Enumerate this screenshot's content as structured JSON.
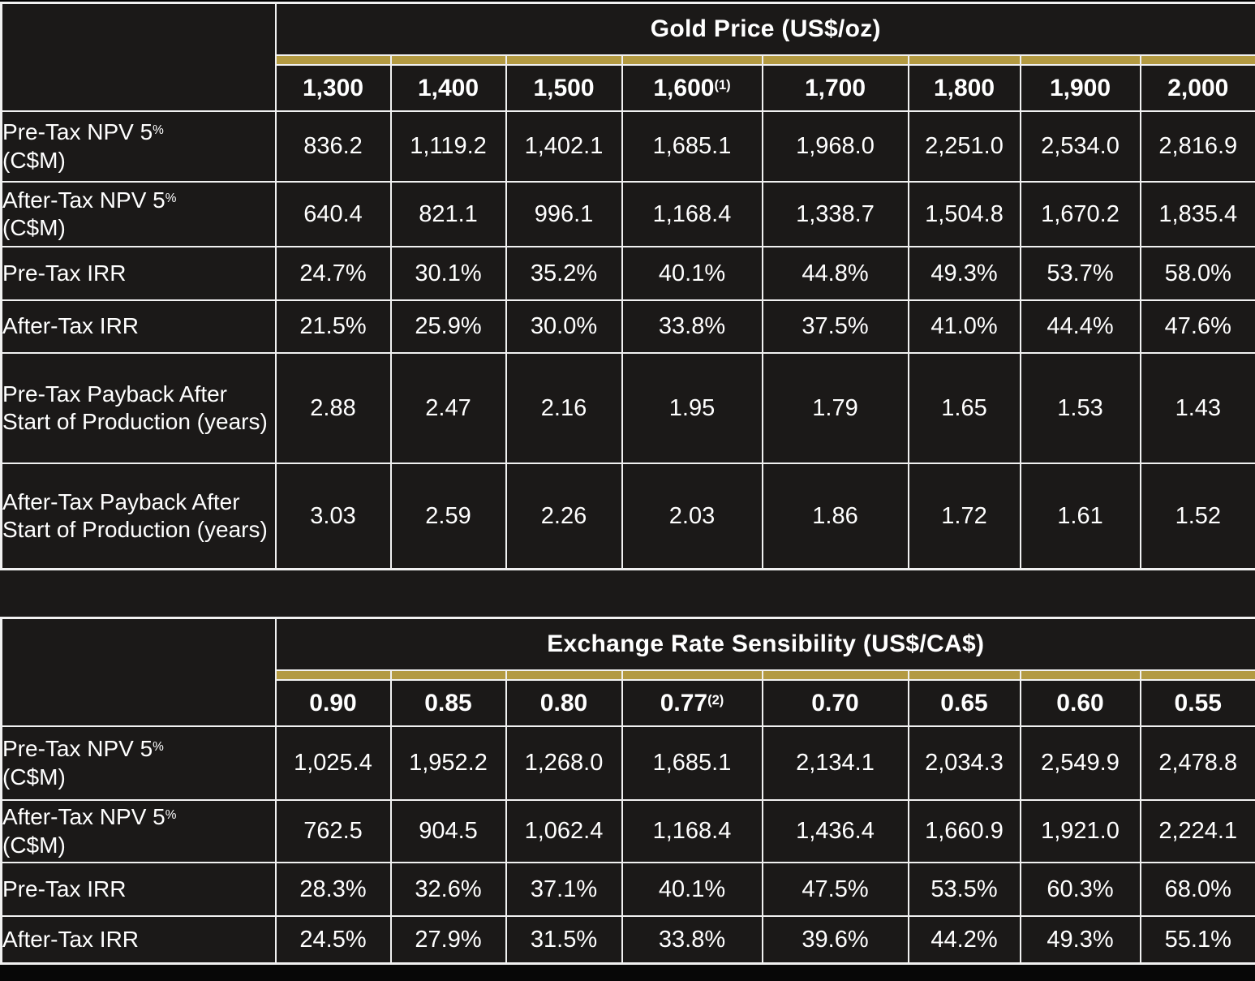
{
  "colors": {
    "background": "#000000",
    "cell": "#1B1918",
    "border": "#F1F1F1",
    "gold": "#B39A42",
    "text": "#FFFFFF",
    "bottom_bar": "#070707"
  },
  "gold_price_table": {
    "title": "Gold Price (US$/oz)",
    "columns": [
      {
        "label": "1,300",
        "sup": ""
      },
      {
        "label": "1,400",
        "sup": ""
      },
      {
        "label": "1,500",
        "sup": ""
      },
      {
        "label": "1,600",
        "sup": "(1)"
      },
      {
        "label": "1,700",
        "sup": ""
      },
      {
        "label": "1,800",
        "sup": ""
      },
      {
        "label": "1,900",
        "sup": ""
      },
      {
        "label": "2,000",
        "sup": ""
      }
    ],
    "rows": [
      {
        "label": "Pre-Tax NPV 5",
        "label_sup": "%",
        "label_line2": "(C$M)",
        "values": [
          "836.2",
          "1,119.2",
          "1,402.1",
          "1,685.1",
          "1,968.0",
          "2,251.0",
          "2,534.0",
          "2,816.9"
        ]
      },
      {
        "label": "After-Tax NPV 5",
        "label_sup": "%",
        "label_line2": "(C$M)",
        "values": [
          "640.4",
          "821.1",
          "996.1",
          "1,168.4",
          "1,338.7",
          "1,504.8",
          "1,670.2",
          "1,835.4"
        ]
      },
      {
        "label": "Pre-Tax IRR",
        "label_sup": "",
        "label_line2": "",
        "values": [
          "24.7%",
          "30.1%",
          "35.2%",
          "40.1%",
          "44.8%",
          "49.3%",
          "53.7%",
          "58.0%"
        ]
      },
      {
        "label": "After-Tax IRR",
        "label_sup": "",
        "label_line2": "",
        "values": [
          "21.5%",
          "25.9%",
          "30.0%",
          "33.8%",
          "37.5%",
          "41.0%",
          "44.4%",
          "47.6%"
        ]
      },
      {
        "label": "Pre-Tax Payback After Start of Production (years)",
        "label_sup": "",
        "label_line2": "",
        "values": [
          "2.88",
          "2.47",
          "2.16",
          "1.95",
          "1.79",
          "1.65",
          "1.53",
          "1.43"
        ]
      },
      {
        "label": "After-Tax Payback After Start of Production (years)",
        "label_sup": "",
        "label_line2": "",
        "values": [
          "3.03",
          "2.59",
          "2.26",
          "2.03",
          "1.86",
          "1.72",
          "1.61",
          "1.52"
        ]
      }
    ]
  },
  "exchange_rate_table": {
    "title": "Exchange Rate Sensibility (US$/CA$)",
    "columns": [
      {
        "label": "0.90",
        "sup": ""
      },
      {
        "label": "0.85",
        "sup": ""
      },
      {
        "label": "0.80",
        "sup": ""
      },
      {
        "label": "0.77",
        "sup": "(2)"
      },
      {
        "label": "0.70",
        "sup": ""
      },
      {
        "label": "0.65",
        "sup": ""
      },
      {
        "label": "0.60",
        "sup": ""
      },
      {
        "label": "0.55",
        "sup": ""
      }
    ],
    "rows": [
      {
        "label": "Pre-Tax NPV 5",
        "label_sup": "%",
        "label_line2": "(C$M)",
        "values": [
          "1,025.4",
          "1,952.2",
          "1,268.0",
          "1,685.1",
          "2,134.1",
          "2,034.3",
          "2,549.9",
          "2,478.8"
        ]
      },
      {
        "label": "After-Tax NPV 5",
        "label_sup": "%",
        "label_line2": "(C$M)",
        "values": [
          "762.5",
          "904.5",
          "1,062.4",
          "1,168.4",
          "1,436.4",
          "1,660.9",
          "1,921.0",
          "2,224.1"
        ]
      },
      {
        "label": "Pre-Tax IRR",
        "label_sup": "",
        "label_line2": "",
        "values": [
          "28.3%",
          "32.6%",
          "37.1%",
          "40.1%",
          "47.5%",
          "53.5%",
          "60.3%",
          "68.0%"
        ]
      },
      {
        "label": "After-Tax IRR",
        "label_sup": "",
        "label_line2": "",
        "values": [
          "24.5%",
          "27.9%",
          "31.5%",
          "33.8%",
          "39.6%",
          "44.2%",
          "49.3%",
          "55.1%"
        ]
      }
    ]
  }
}
